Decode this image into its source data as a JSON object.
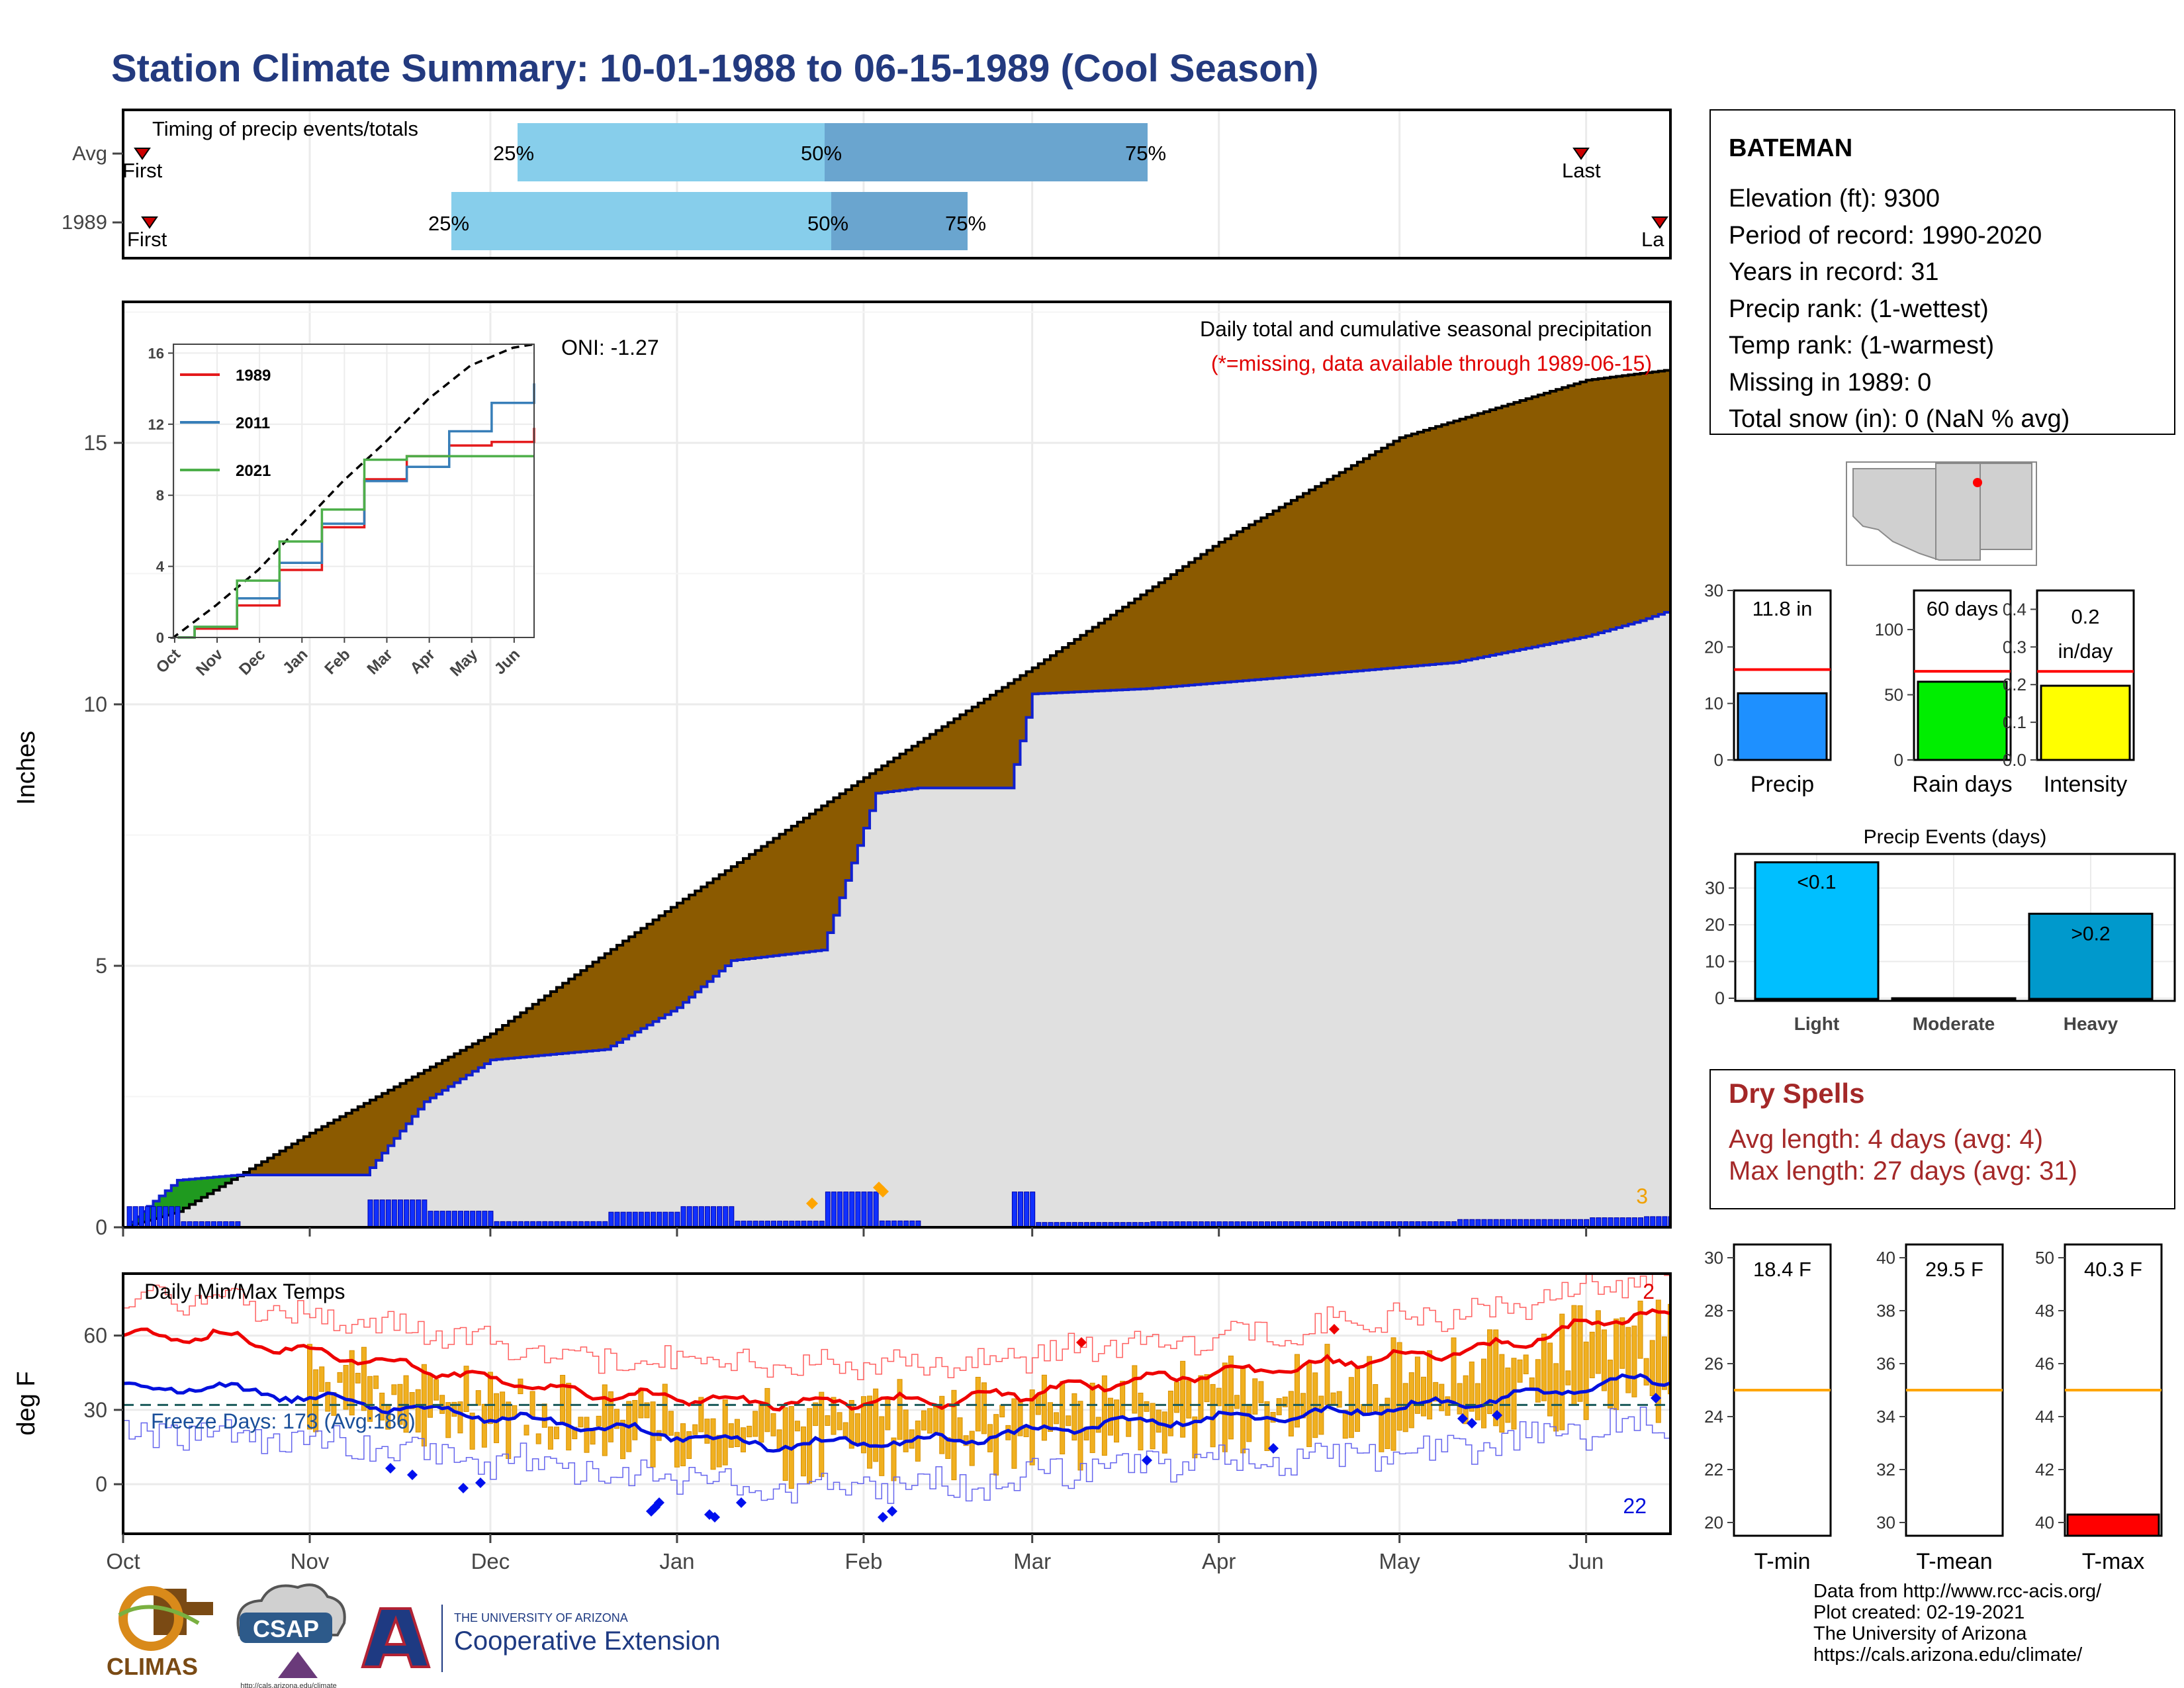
{
  "title": "Station Climate Summary: 10-01-1988 to 06-15-1989 (Cool Season)",
  "timing": {
    "title": "Timing of precip events/totals",
    "rows": [
      {
        "label": "Avg",
        "first": "First",
        "last": "Last",
        "p25": "25%",
        "p50": "50%",
        "p75": "75%"
      },
      {
        "label": "1989",
        "first": "First",
        "last": "La",
        "p25": "25%",
        "p50": "50%",
        "p75": "75%"
      }
    ],
    "colors": {
      "light": "#87ceeb",
      "dark": "#6aa5cf",
      "marker": "#cc0000"
    }
  },
  "main": {
    "oni": "ONI: -1.27",
    "title": "Daily total and cumulative seasonal precipitation",
    "missing_note": "(*=missing, data available through 1989-06-15)",
    "ylabel": "Inches",
    "corner_count": "3",
    "colors": {
      "deficit": "#8b5a00",
      "surplus": "#1f9a1f",
      "observed": "#e0e0e0",
      "observed_line": "#1020d0",
      "daily": "#1030ff"
    }
  },
  "inset": {
    "series": [
      {
        "name": "1989",
        "color": "#e41a1c"
      },
      {
        "name": "2011",
        "color": "#377eb8"
      },
      {
        "name": "2021",
        "color": "#4daf4a"
      }
    ]
  },
  "temps": {
    "title": "Daily Min/Max Temps",
    "freeze": "Freeze Days: 173 (Avg:186)",
    "ylabel": "deg F",
    "count_max": "2",
    "count_min": "22"
  },
  "station": {
    "name": "BATEMAN",
    "lines": [
      "Elevation (ft): 9300",
      "Period of record: 1990-2020",
      "Years in record: 31",
      "Precip rank:  (1-wettest)",
      "Temp rank:  (1-warmest)",
      "Missing in 1989: 0",
      "Total snow (in): 0 (NaN % avg)"
    ]
  },
  "mini_bars": [
    {
      "label": "Precip",
      "value_label": "11.8 in",
      "value": 11.8,
      "avg": 16,
      "ymax": 30,
      "ticks": [
        "0",
        "10",
        "20",
        "30"
      ],
      "color": "#1e90ff"
    },
    {
      "label": "Rain days",
      "value_label": "60 days",
      "value": 60,
      "avg": 68,
      "ymax": 130,
      "ticks": [
        "0",
        "50",
        "100"
      ],
      "color": "#00ee00"
    },
    {
      "label": "Intensity",
      "value_label": "0.2 in/day",
      "value_line1": "0.2",
      "value_line2": "in/day",
      "value": 0.197,
      "avg": 0.235,
      "ymax": 0.45,
      "ticks": [
        "0.0",
        "0.1",
        "0.2",
        "0.3",
        "0.4"
      ],
      "color": "#ffff00"
    }
  ],
  "events": {
    "title": "Precip Events (days)",
    "categories": [
      "Light",
      "Moderate",
      "Heavy"
    ],
    "values": [
      37,
      0,
      23
    ],
    "labels": [
      "<0.1",
      "",
      ">0.2"
    ],
    "ticks": [
      "0",
      "10",
      "20",
      "30"
    ],
    "colors": [
      "#00bfff",
      "#00bfff",
      "#0099cc"
    ]
  },
  "dry_spells": {
    "title": "Dry Spells",
    "avg_line": "Avg length: 4 days (avg: 4)",
    "max_line": "Max length: 27 days (avg: 31)"
  },
  "temp_bars": [
    {
      "label": "T-min",
      "value_label": "18.4 F",
      "value": 18.4,
      "avg": 25,
      "ymin": 19.5,
      "ymax": 30.5,
      "ticks": [
        "20",
        "22",
        "24",
        "26",
        "28",
        "30"
      ]
    },
    {
      "label": "T-mean",
      "value_label": "29.5 F",
      "value": 29.5,
      "avg": 35,
      "ymin": 29.5,
      "ymax": 40.5,
      "ticks": [
        "30",
        "32",
        "34",
        "36",
        "38",
        "40"
      ]
    },
    {
      "label": "T-max",
      "value_label": "40.3 F",
      "value": 40.3,
      "avg": 45,
      "ymin": 39.5,
      "ymax": 50.5,
      "ticks": [
        "40",
        "42",
        "44",
        "46",
        "48",
        "50"
      ],
      "color": "#ff0000"
    }
  ],
  "logos": {
    "climas": "CLIMAS",
    "csap": "CSAP",
    "csap_url": "http://cals.arizona.edu/climate",
    "ua_line1": "THE UNIVERSITY OF ARIZONA",
    "ua_line2": "Cooperative Extension"
  },
  "credits": [
    "Data from http://www.rcc-acis.org/",
    "Plot created: 02-19-2021",
    "The University of Arizona",
    "https://cals.arizona.edu/climate/"
  ],
  "chart_data": [
    {
      "type": "area",
      "title": "Daily total and cumulative seasonal precipitation",
      "ylabel": "Inches",
      "x_ticks": [
        "Oct",
        "Nov",
        "Dec",
        "Jan",
        "Feb",
        "Mar",
        "Apr",
        "May",
        "Jun"
      ],
      "y_ticks": [
        "0",
        "5",
        "10",
        "15"
      ],
      "ylim": [
        0,
        17.5
      ],
      "series": [
        {
          "name": "Average cumulative",
          "x": [
            "1988-10-01",
            "1988-10-10",
            "1988-11-01",
            "1988-12-01",
            "1989-01-01",
            "1989-02-01",
            "1989-03-01",
            "1989-04-01",
            "1989-05-01",
            "1989-06-01",
            "1989-06-15"
          ],
          "values": [
            0,
            0.3,
            1.8,
            3.7,
            6.2,
            8.6,
            10.7,
            13.1,
            15.1,
            16.2,
            16.4
          ]
        },
        {
          "name": "Observed cumulative",
          "x": [
            "1988-10-01",
            "1988-10-10",
            "1988-10-20",
            "1988-11-10",
            "1988-11-20",
            "1988-12-01",
            "1988-12-20",
            "1989-01-01",
            "1989-01-10",
            "1989-01-25",
            "1989-02-03",
            "1989-02-10",
            "1989-02-25",
            "1989-03-01",
            "1989-03-20",
            "1989-04-10",
            "1989-05-10",
            "1989-06-01",
            "1989-06-10",
            "1989-06-15"
          ],
          "values": [
            0,
            0.9,
            1.0,
            1.0,
            2.4,
            3.2,
            3.4,
            4.2,
            5.1,
            5.3,
            8.3,
            8.4,
            8.4,
            10.2,
            10.3,
            10.5,
            10.8,
            11.3,
            11.6,
            11.8
          ]
        }
      ]
    },
    {
      "type": "line",
      "title": "Daily Min/Max Temps",
      "ylabel": "deg F",
      "y_ticks": [
        "0",
        "30",
        "60"
      ],
      "ylim": [
        -20,
        85
      ],
      "series": [
        {
          "name": "Avg max",
          "x": [
            "Oct",
            "Nov",
            "Dec",
            "Jan",
            "Feb",
            "Mar",
            "Apr",
            "May",
            "Jun"
          ],
          "values": [
            60,
            48,
            37,
            33,
            34,
            41,
            48,
            55,
            68
          ]
        },
        {
          "name": "Avg min",
          "x": [
            "Oct",
            "Nov",
            "Dec",
            "Jan",
            "Feb",
            "Mar",
            "Apr",
            "May",
            "Jun"
          ],
          "values": [
            39,
            31,
            24,
            16,
            18,
            25,
            28,
            34,
            42
          ]
        }
      ],
      "freeze_line": 32
    },
    {
      "type": "line",
      "x_ticks": [
        "Oct",
        "Nov",
        "Dec",
        "Jan",
        "Feb",
        "Mar",
        "Apr",
        "May",
        "Jun"
      ],
      "y_ticks": [
        "0",
        "4",
        "8",
        "12",
        "16"
      ],
      "ylim": [
        0,
        16
      ],
      "series": [
        {
          "name": "1989",
          "values": [
            0.5,
            1.8,
            3.8,
            6.2,
            8.9,
            10.2,
            10.8,
            11.0,
            11.8
          ]
        },
        {
          "name": "2011",
          "values": [
            0.6,
            2.2,
            4.2,
            6.4,
            8.8,
            9.6,
            11.6,
            13.2,
            14.3
          ]
        },
        {
          "name": "2021",
          "values": [
            0.6,
            3.2,
            5.4,
            7.2,
            10.0,
            10.2,
            10.2,
            10.2,
            10.2
          ]
        }
      ]
    }
  ]
}
